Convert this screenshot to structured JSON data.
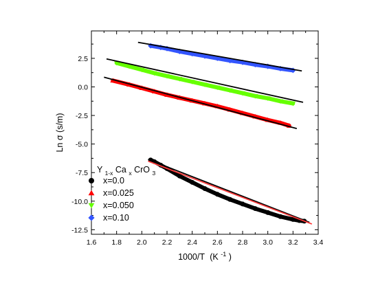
{
  "chart_data": {
    "type": "scatter",
    "xlabel": {
      "main": "1000/T",
      "unit_open": "(K",
      "unit_sup": "-1",
      "unit_close": ")"
    },
    "ylabel": "Ln σ (s/m)",
    "xlim": [
      1.6,
      3.4
    ],
    "ylim": [
      -12.9,
      4.9
    ],
    "xticks": [
      "1.6",
      "1.8",
      "2.0",
      "2.2",
      "2.4",
      "2.6",
      "2.8",
      "3.0",
      "3.2",
      "3.4"
    ],
    "yticks": [
      "2.5",
      "0.0",
      "-2.5",
      "-5.0",
      "-7.5",
      "-10.0",
      "-12.5"
    ],
    "ytick_values": [
      2.5,
      0.0,
      -2.5,
      -5.0,
      -7.5,
      -10.0,
      -12.5
    ],
    "legend": {
      "placement": "bottom-left",
      "title": {
        "parts": [
          "Y",
          "1-x",
          "Ca",
          "x",
          "CrO",
          "3"
        ]
      }
    },
    "series": [
      {
        "name": "x=0.0",
        "marker": "circle",
        "color": "#000000",
        "x": [
          2.07,
          2.1,
          2.15,
          2.2,
          2.3,
          2.4,
          2.5,
          2.6,
          2.7,
          2.8,
          2.9,
          3.0,
          3.1,
          3.2,
          3.25,
          3.29
        ],
        "y": [
          -6.4,
          -6.55,
          -6.85,
          -7.15,
          -7.8,
          -8.35,
          -8.9,
          -9.4,
          -9.85,
          -10.25,
          -10.65,
          -11.0,
          -11.35,
          -11.6,
          -11.7,
          -11.75
        ]
      },
      {
        "name": "x=0.025",
        "marker": "triangle-up",
        "color": "#ff0000",
        "x": [
          1.77,
          1.9,
          2.0,
          2.1,
          2.2,
          2.3,
          2.4,
          2.5,
          2.6,
          2.7,
          2.8,
          2.9,
          3.0,
          3.1,
          3.17
        ],
        "y": [
          0.55,
          0.2,
          -0.1,
          -0.4,
          -0.7,
          -0.95,
          -1.2,
          -1.45,
          -1.7,
          -2.0,
          -2.3,
          -2.6,
          -2.9,
          -3.15,
          -3.4
        ]
      },
      {
        "name": "x=0.050",
        "marker": "triangle-down",
        "color": "#66ff00",
        "x": [
          1.8,
          1.9,
          2.0,
          2.1,
          2.2,
          2.3,
          2.4,
          2.5,
          2.6,
          2.7,
          2.8,
          2.9,
          3.0,
          3.1,
          3.2
        ],
        "y": [
          2.1,
          1.8,
          1.5,
          1.2,
          0.95,
          0.7,
          0.45,
          0.2,
          -0.05,
          -0.3,
          -0.55,
          -0.8,
          -1.0,
          -1.25,
          -1.45
        ]
      },
      {
        "name": "x=0.10",
        "marker": "diamond",
        "color": "#3355ff",
        "x": [
          2.07,
          2.15,
          2.2,
          2.3,
          2.4,
          2.5,
          2.6,
          2.7,
          2.8,
          2.9,
          3.0,
          3.1,
          3.2
        ],
        "y": [
          3.6,
          3.45,
          3.35,
          3.1,
          2.9,
          2.7,
          2.5,
          2.3,
          2.15,
          1.95,
          1.8,
          1.6,
          1.45
        ]
      }
    ],
    "fit_lines": [
      {
        "color": "#000000",
        "x": [
          1.97,
          3.27
        ],
        "y": [
          3.9,
          1.4
        ]
      },
      {
        "color": "#000000",
        "x": [
          1.72,
          3.28
        ],
        "y": [
          2.45,
          -1.35
        ]
      },
      {
        "color": "#000000",
        "x": [
          1.7,
          3.23
        ],
        "y": [
          0.85,
          -3.65
        ]
      },
      {
        "color": "#000000",
        "x": [
          2.05,
          3.33
        ],
        "y": [
          -6.35,
          -11.85
        ]
      },
      {
        "color": "#ff3b3b",
        "x": [
          2.05,
          3.35
        ],
        "y": [
          -6.5,
          -12.0
        ]
      }
    ]
  }
}
